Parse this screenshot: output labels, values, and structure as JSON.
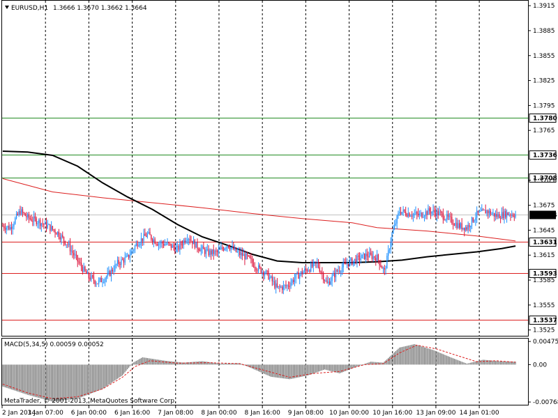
{
  "header": {
    "symbol": "EURUSD,H1",
    "ohlc": "1.3666 1.3670 1.3662 1.3664"
  },
  "macd_header": {
    "label": "MACD(5,34,5) 0.00059 0.00052"
  },
  "copyright": "MetaTrader, © 2001-2013, MetaQuotes Software Corp.",
  "colors": {
    "bull": "#1e90ff",
    "bear": "#dc143c",
    "ma_slow": "#dc1e1e",
    "ma_fast": "#000000",
    "macd_hist": "#808080",
    "macd_signal": "#dc1e1e",
    "support_line": "#dc1e1e",
    "resistance_line": "#228b22",
    "grid": "#000000",
    "current_price": "#c0c0c0"
  },
  "chart_data": [
    {
      "type": "candlestick",
      "title": "EURUSD,H1",
      "y_ticks": [
        "1.3915",
        "1.3885",
        "1.3855",
        "1.3825",
        "1.3795",
        "1.3765",
        "1.3705",
        "1.3675",
        "1.3645",
        "1.3615",
        "1.3585",
        "1.3555",
        "1.3525"
      ],
      "ylim": [
        1.3518,
        1.3921
      ],
      "x_labels": [
        "2 Jan 2014",
        "3 Jan 07:00",
        "6 Jan 00:00",
        "6 Jan 16:00",
        "7 Jan 08:00",
        "8 Jan 00:00",
        "8 Jan 16:00",
        "9 Jan 08:00",
        "10 Jan 00:00",
        "10 Jan 16:00",
        "13 Jan 09:00",
        "14 Jan 01:00"
      ],
      "grid": "vertical dashed",
      "levels": [
        {
          "value": "1.3780",
          "kind": "resistance"
        },
        {
          "value": "1.3736",
          "kind": "resistance"
        },
        {
          "value": "1.3708",
          "kind": "resistance"
        },
        {
          "value": "1.3631",
          "kind": "support"
        },
        {
          "value": "1.3593",
          "kind": "support"
        },
        {
          "value": "1.3537",
          "kind": "support"
        }
      ],
      "current_price": "1.3664",
      "close_path": [
        [
          0,
          1.365
        ],
        [
          6,
          1.3648
        ],
        [
          14,
          1.3668
        ],
        [
          20,
          1.366
        ],
        [
          28,
          1.3656
        ],
        [
          36,
          1.365
        ],
        [
          44,
          1.3642
        ],
        [
          52,
          1.3628
        ],
        [
          60,
          1.3608
        ],
        [
          68,
          1.359
        ],
        [
          76,
          1.3582
        ],
        [
          84,
          1.359
        ],
        [
          92,
          1.3605
        ],
        [
          100,
          1.3612
        ],
        [
          108,
          1.363
        ],
        [
          116,
          1.364
        ],
        [
          124,
          1.363
        ],
        [
          132,
          1.3628
        ],
        [
          140,
          1.3622
        ],
        [
          148,
          1.3638
        ],
        [
          156,
          1.3625
        ],
        [
          164,
          1.3618
        ],
        [
          172,
          1.3618
        ],
        [
          180,
          1.3628
        ],
        [
          188,
          1.3618
        ],
        [
          196,
          1.3612
        ],
        [
          204,
          1.36
        ],
        [
          212,
          1.3592
        ],
        [
          220,
          1.3575
        ],
        [
          228,
          1.3578
        ],
        [
          236,
          1.359
        ],
        [
          244,
          1.3598
        ],
        [
          252,
          1.3605
        ],
        [
          260,
          1.358
        ],
        [
          268,
          1.3596
        ],
        [
          276,
          1.3605
        ],
        [
          284,
          1.361
        ],
        [
          292,
          1.3615
        ],
        [
          300,
          1.3612
        ],
        [
          306,
          1.3595
        ],
        [
          312,
          1.364
        ],
        [
          318,
          1.3668
        ],
        [
          326,
          1.3665
        ],
        [
          334,
          1.3663
        ],
        [
          342,
          1.3668
        ],
        [
          350,
          1.3665
        ],
        [
          358,
          1.3658
        ],
        [
          366,
          1.365
        ],
        [
          372,
          1.3648
        ],
        [
          380,
          1.3664
        ],
        [
          388,
          1.3668
        ],
        [
          396,
          1.3662
        ],
        [
          404,
          1.3665
        ],
        [
          411,
          1.3664
        ]
      ],
      "series": [
        {
          "kind": "sma_long",
          "points": [
            [
              0,
              1.3707
            ],
            [
              40,
              1.3691
            ],
            [
              80,
              1.3684
            ],
            [
              120,
              1.3678
            ],
            [
              160,
              1.3672
            ],
            [
              200,
              1.3665
            ],
            [
              240,
              1.3659
            ],
            [
              280,
              1.3654
            ],
            [
              300,
              1.3648
            ],
            [
              340,
              1.3644
            ],
            [
              380,
              1.3638
            ],
            [
              411,
              1.3632
            ]
          ]
        },
        {
          "kind": "sma_short",
          "points": [
            [
              0,
              1.374
            ],
            [
              20,
              1.3739
            ],
            [
              40,
              1.3735
            ],
            [
              60,
              1.3722
            ],
            [
              80,
              1.3702
            ],
            [
              100,
              1.3685
            ],
            [
              120,
              1.367
            ],
            [
              140,
              1.3652
            ],
            [
              160,
              1.3637
            ],
            [
              180,
              1.3627
            ],
            [
              200,
              1.3616
            ],
            [
              220,
              1.3608
            ],
            [
              240,
              1.3606
            ],
            [
              260,
              1.3606
            ],
            [
              280,
              1.3606
            ],
            [
              300,
              1.3607
            ],
            [
              320,
              1.3609
            ],
            [
              340,
              1.3613
            ],
            [
              360,
              1.3616
            ],
            [
              380,
              1.3619
            ],
            [
              400,
              1.3623
            ],
            [
              411,
              1.3626
            ]
          ]
        }
      ]
    },
    {
      "type": "bar",
      "title": "MACD(5,34,5) 0.00059 0.00052",
      "y_ticks": [
        "0.00475",
        "0.00",
        "-0.00768"
      ],
      "ylim": [
        -0.0081,
        0.0052
      ],
      "hist_path": [
        [
          0,
          -0.0045
        ],
        [
          20,
          -0.0062
        ],
        [
          40,
          -0.0076
        ],
        [
          60,
          -0.007
        ],
        [
          80,
          -0.005
        ],
        [
          96,
          -0.0022
        ],
        [
          104,
          0.0003
        ],
        [
          112,
          0.0015
        ],
        [
          130,
          0.0008
        ],
        [
          145,
          0.0004
        ],
        [
          160,
          0.0007
        ],
        [
          175,
          0.0002
        ],
        [
          190,
          0.0003
        ],
        [
          200,
          -0.0008
        ],
        [
          215,
          -0.0025
        ],
        [
          230,
          -0.003
        ],
        [
          245,
          -0.0022
        ],
        [
          258,
          -0.001
        ],
        [
          270,
          -0.0018
        ],
        [
          282,
          -0.0006
        ],
        [
          295,
          0.0006
        ],
        [
          305,
          0.0004
        ],
        [
          318,
          0.0035
        ],
        [
          330,
          0.0042
        ],
        [
          345,
          0.003
        ],
        [
          360,
          0.0014
        ],
        [
          372,
          0.0002
        ],
        [
          385,
          0.001
        ],
        [
          398,
          0.0007
        ],
        [
          411,
          0.0006
        ]
      ],
      "signal_path": [
        [
          0,
          -0.004
        ],
        [
          20,
          -0.0058
        ],
        [
          40,
          -0.007
        ],
        [
          60,
          -0.0066
        ],
        [
          80,
          -0.005
        ],
        [
          96,
          -0.0026
        ],
        [
          106,
          -0.0004
        ],
        [
          118,
          0.0008
        ],
        [
          140,
          0.0003
        ],
        [
          165,
          0.0004
        ],
        [
          190,
          0.0002
        ],
        [
          210,
          -0.0012
        ],
        [
          230,
          -0.0026
        ],
        [
          250,
          -0.0018
        ],
        [
          270,
          -0.0014
        ],
        [
          290,
          0.0
        ],
        [
          305,
          0.0002
        ],
        [
          318,
          0.0024
        ],
        [
          332,
          0.004
        ],
        [
          348,
          0.0032
        ],
        [
          365,
          0.0018
        ],
        [
          380,
          0.0006
        ],
        [
          395,
          0.0008
        ],
        [
          411,
          0.0005
        ]
      ]
    }
  ]
}
